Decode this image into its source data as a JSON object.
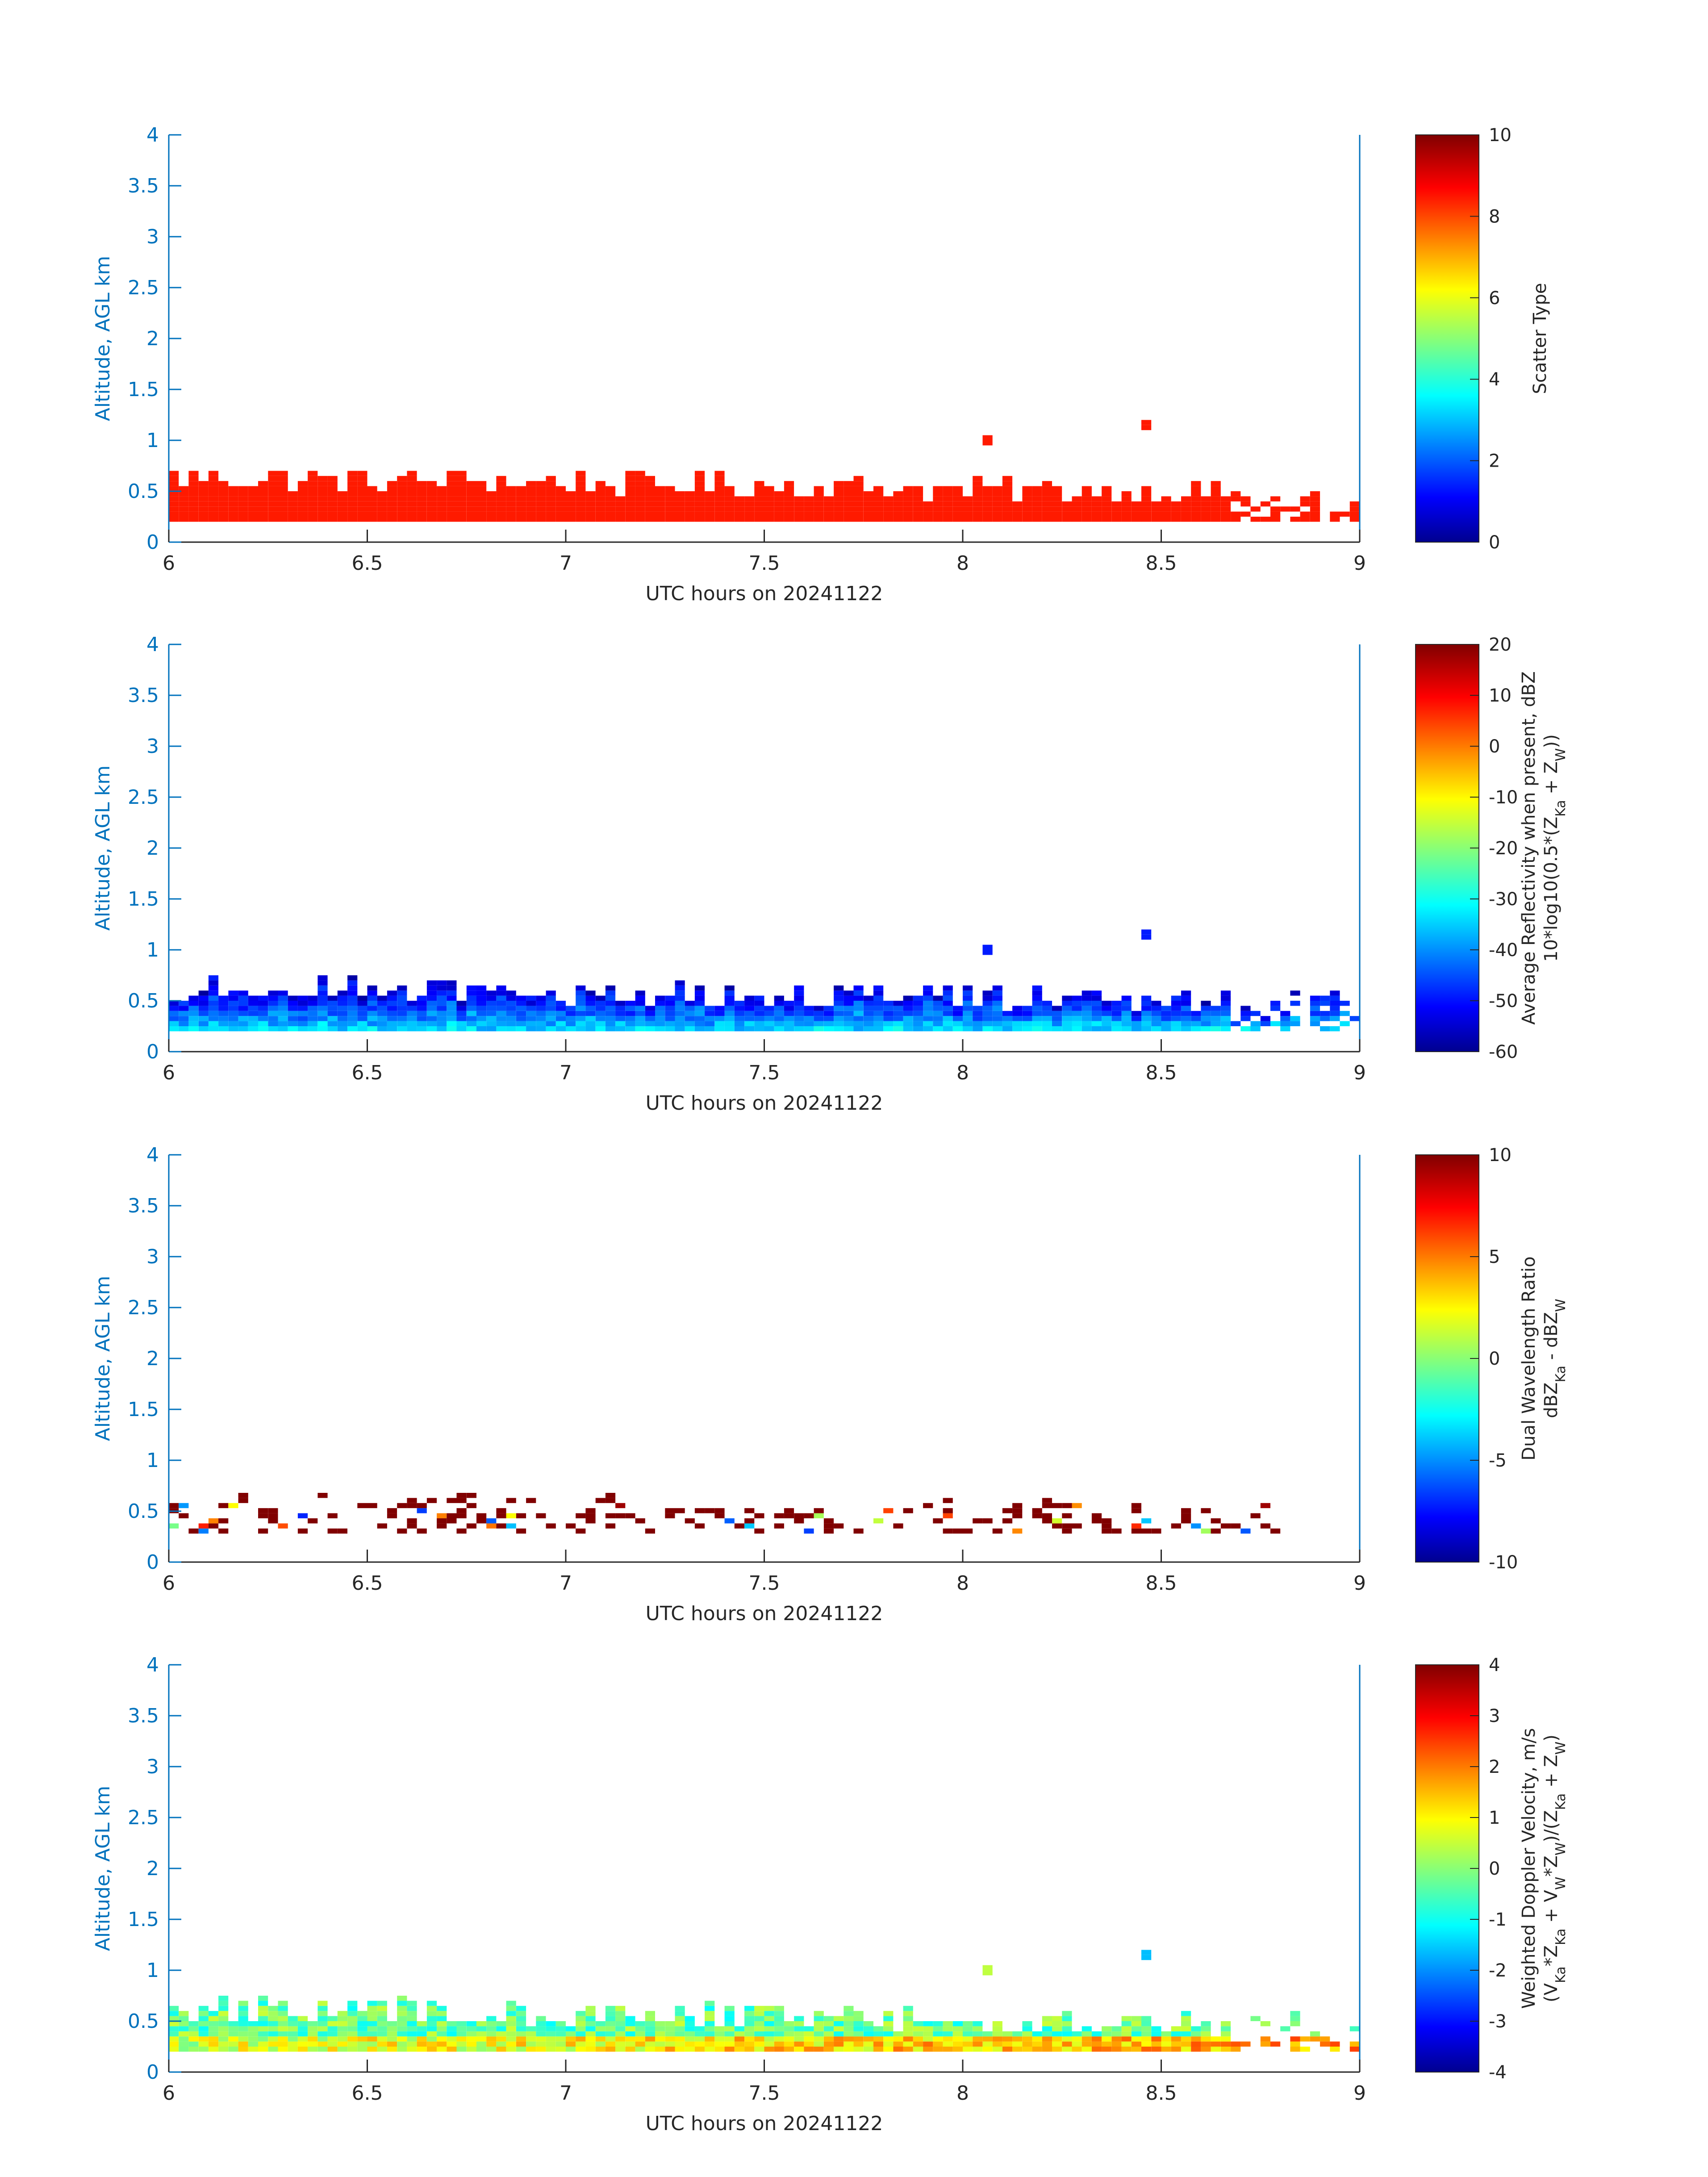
{
  "figure": {
    "xlabel": "UTC hours on 20241122",
    "ylabel": "Altitude, AGL km"
  },
  "colors": {
    "axis_y": "#0072BD",
    "axis_x": "#262626",
    "colormap": "jet"
  },
  "chart_data": [
    {
      "type": "heatmap",
      "xlabel": "UTC hours on 20241122",
      "ylabel": "Altitude, AGL km",
      "xlim": [
        6,
        9
      ],
      "ylim": [
        0,
        4
      ],
      "xticks": [
        "6",
        "6.5",
        "7",
        "7.5",
        "8",
        "8.5",
        "9"
      ],
      "yticks": [
        "0",
        "0.5",
        "1",
        "1.5",
        "2",
        "2.5",
        "3",
        "3.5",
        "4"
      ],
      "colorbar": {
        "label": [
          "Scatter Type"
        ],
        "clim": [
          0,
          10
        ],
        "ticks": [
          "0",
          "2",
          "4",
          "6",
          "8",
          "10"
        ]
      },
      "summary": "Uniform value ~8.5 (orange-red) from ~0.2 km up to 0.35–0.75 km over 6–9 h; isolated echoes near 8.05 h (~1.0 km) and 8.45 h (~1.1 km).",
      "cells": [
        {
          "x": 6.0,
          "y": 0.2,
          "y_top": 0.65,
          "v": 8.5
        },
        {
          "x": 6.5,
          "y": 0.2,
          "y_top": 0.65,
          "v": 8.5
        },
        {
          "x": 7.0,
          "y": 0.2,
          "y_top": 0.5,
          "v": 8.5
        },
        {
          "x": 7.5,
          "y": 0.2,
          "y_top": 0.55,
          "v": 8.5
        },
        {
          "x": 8.0,
          "y": 0.2,
          "y_top": 0.5,
          "v": 8.5
        },
        {
          "x": 8.5,
          "y": 0.2,
          "y_top": 0.4,
          "v": 8.5
        },
        {
          "x": 8.05,
          "y": 0.95,
          "y_top": 1.0,
          "v": 8.5
        },
        {
          "x": 8.45,
          "y": 1.1,
          "y_top": 1.15,
          "v": 8.5
        }
      ]
    },
    {
      "type": "heatmap",
      "xlabel": "UTC hours on 20241122",
      "ylabel": "Altitude, AGL km",
      "xlim": [
        6,
        9
      ],
      "ylim": [
        0,
        4
      ],
      "xticks": [
        "6",
        "6.5",
        "7",
        "7.5",
        "8",
        "8.5",
        "9"
      ],
      "yticks": [
        "0",
        "0.5",
        "1",
        "1.5",
        "2",
        "2.5",
        "3",
        "3.5",
        "4"
      ],
      "colorbar": {
        "label": [
          "Average Reflectivity when present, dBZ",
          "10*log10(0.5*(Z_Ka + Z_W))"
        ],
        "clim": [
          -60,
          20
        ],
        "ticks": [
          "-60",
          "-50",
          "-40",
          "-30",
          "-20",
          "-10",
          "0",
          "10",
          "20"
        ]
      },
      "summary": "Mostly -50 to -30 dBZ between 0.2 and 0.8 km; highest values (~-35) near 0.3 km, lowest (~-55) near cloud top.",
      "cells": [
        {
          "x": 6.0,
          "y": 0.3,
          "v": -35
        },
        {
          "x": 6.0,
          "y": 0.6,
          "v": -52
        },
        {
          "x": 7.0,
          "y": 0.3,
          "v": -35
        },
        {
          "x": 7.5,
          "y": 0.5,
          "v": -52
        },
        {
          "x": 8.05,
          "y": 1.0,
          "v": -50
        },
        {
          "x": 8.45,
          "y": 1.15,
          "v": -45
        }
      ]
    },
    {
      "type": "heatmap",
      "xlabel": "UTC hours on 20241122",
      "ylabel": "Altitude, AGL km",
      "xlim": [
        6,
        9
      ],
      "ylim": [
        0,
        4
      ],
      "xticks": [
        "6",
        "6.5",
        "7",
        "7.5",
        "8",
        "8.5",
        "9"
      ],
      "yticks": [
        "0",
        "0.5",
        "1",
        "1.5",
        "2",
        "2.5",
        "3",
        "3.5",
        "4"
      ],
      "colorbar": {
        "label": [
          "Dual Wavelength Ratio",
          "dBZ_Ka - dBZ_W"
        ],
        "clim": [
          -10,
          10
        ],
        "ticks": [
          "-10",
          "-5",
          "0",
          "5",
          "10"
        ]
      },
      "summary": "Sparse, mostly ~10 dB (dark red) between 0.25 and 0.65 km, 6–8.75 h, with scattered low values.",
      "cells": [
        {
          "x": 6.1,
          "y": 0.4,
          "v": 10
        },
        {
          "x": 6.6,
          "y": 0.35,
          "v": 10
        },
        {
          "x": 7.1,
          "y": 0.4,
          "v": 10
        },
        {
          "x": 7.8,
          "y": 0.45,
          "v": 10
        },
        {
          "x": 8.1,
          "y": 0.45,
          "v": 10
        },
        {
          "x": 8.75,
          "y": 0.45,
          "v": 10
        }
      ]
    },
    {
      "type": "heatmap",
      "xlabel": "UTC hours on 20241122",
      "ylabel": "Altitude, AGL km",
      "xlim": [
        6,
        9
      ],
      "ylim": [
        0,
        4
      ],
      "xticks": [
        "6",
        "6.5",
        "7",
        "7.5",
        "8",
        "8.5",
        "9"
      ],
      "yticks": [
        "0",
        "0.5",
        "1",
        "1.5",
        "2",
        "2.5",
        "3",
        "3.5",
        "4"
      ],
      "colorbar": {
        "label": [
          "Weighted Doppler Velocity, m/s",
          "(V_Ka*Z_Ka + V_W*Z_W)/(Z_Ka + Z_W)"
        ],
        "clim": [
          -4,
          4
        ],
        "ticks": [
          "-4",
          "-3",
          "-2",
          "-1",
          "0",
          "1",
          "2",
          "3",
          "4"
        ]
      },
      "summary": "Mostly -1 to +1 m/s between 0.2 and 0.75 km; positive (~1–2 m/s) near the surface after 8 h; isolated echoes at 8.05 h and 8.45 h near 1 km.",
      "cells": [
        {
          "x": 6.0,
          "y": 0.4,
          "v": -0.5
        },
        {
          "x": 7.0,
          "y": 0.4,
          "v": 0.3
        },
        {
          "x": 8.3,
          "y": 0.3,
          "v": 1.8
        },
        {
          "x": 8.05,
          "y": 1.0,
          "v": 0.4
        },
        {
          "x": 8.45,
          "y": 1.15,
          "v": -1.5
        }
      ]
    }
  ]
}
